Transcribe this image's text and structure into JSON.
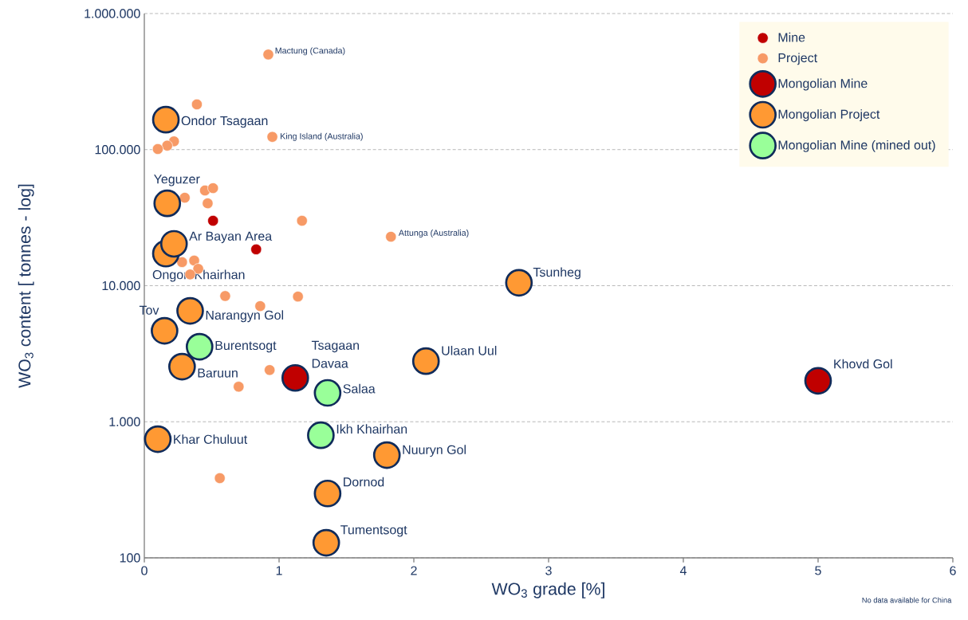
{
  "chart_data": {
    "type": "scatter",
    "xlabel": "WO$_{3}$ grade [%]",
    "ylabel": "WO$_{3}$ content [ tonnes - log]",
    "xlim": [
      0,
      6
    ],
    "xticks": [
      0,
      1,
      2,
      3,
      4,
      5,
      6
    ],
    "ylim": [
      100,
      1000000
    ],
    "yticks": [
      {
        "value": 100,
        "label": "100"
      },
      {
        "value": 1000,
        "label": "1.000"
      },
      {
        "value": 10000,
        "label": "10.000"
      },
      {
        "value": 100000,
        "label": "100.000"
      },
      {
        "value": 1000000,
        "label": "1.000.000"
      }
    ],
    "log": "y",
    "grid": "y",
    "legend": "top right",
    "series": [
      {
        "name": "Mine",
        "color": "#c00000",
        "x": [
          0.51,
          0.83
        ],
        "values": [
          30000,
          18500
        ]
      },
      {
        "name": "Project",
        "color": "#f79a66",
        "x": [
          0.92,
          0.39,
          0.95,
          0.22,
          0.17,
          0.1,
          0.3,
          0.45,
          0.51,
          0.47,
          1.17,
          1.83,
          0.28,
          0.37,
          0.4,
          0.34,
          0.6,
          0.86,
          1.14,
          0.93,
          0.7,
          0.56
        ],
        "values": [
          500000,
          215000,
          124000,
          115000,
          107000,
          101000,
          44300,
          50100,
          52100,
          40300,
          30000,
          22900,
          14900,
          15300,
          13300,
          12100,
          8400,
          7080,
          8320,
          2400,
          1810,
          385
        ]
      },
      {
        "name": "Mongolian Mine",
        "color": "#c00000",
        "x": [
          1.12,
          5.0
        ],
        "values": [
          2100,
          2000
        ]
      },
      {
        "name": "Mongolian Project",
        "color": "#ff9933",
        "x": [
          0.16,
          0.17,
          0.16,
          0.22,
          2.78,
          0.34,
          0.15,
          0.28,
          2.09,
          0.1,
          1.8,
          1.36,
          1.35
        ],
        "values": [
          166000,
          40300,
          17200,
          20300,
          10500,
          6530,
          4660,
          2540,
          2790,
          745,
          569,
          297,
          129
        ]
      },
      {
        "name": "Mongolian Mine (mined out)",
        "color": "#99ff99",
        "x": [
          0.41,
          1.36,
          1.31
        ],
        "values": [
          3560,
          1630,
          796
        ]
      }
    ],
    "annotations": [
      {
        "text": "Mactung (Canada)",
        "x": 0.92,
        "y": 500000
      },
      {
        "text": "King Island (Australia)",
        "x": 0.95,
        "y": 124000
      },
      {
        "text": "Attunga (Australia)",
        "x": 1.83,
        "y": 22900
      },
      {
        "text": "Ondor Tsagaan",
        "x": 0.16,
        "y": 166000
      },
      {
        "text": "Yeguzer",
        "x": 0.17,
        "y": 40300
      },
      {
        "text": "Ar Bayan Area",
        "x": 0.22,
        "y": 20300
      },
      {
        "text": "Ongon Khairhan",
        "x": 0.16,
        "y": 17200
      },
      {
        "text": "Tsunheg",
        "x": 2.78,
        "y": 10500
      },
      {
        "text": "Narangyn Gol",
        "x": 0.34,
        "y": 6530
      },
      {
        "text": "Tov",
        "x": 0.15,
        "y": 4660
      },
      {
        "text": "Burentsogt",
        "x": 0.41,
        "y": 3560
      },
      {
        "text": "Baruun",
        "x": 0.28,
        "y": 2540
      },
      {
        "text": "Tsagaan Davaa",
        "x": 1.12,
        "y": 2100
      },
      {
        "text": "Ulaan Uul",
        "x": 2.09,
        "y": 2790
      },
      {
        "text": "Salaa",
        "x": 1.36,
        "y": 1630
      },
      {
        "text": "Khovd Gol",
        "x": 5.0,
        "y": 2000
      },
      {
        "text": "Khar Chuluut",
        "x": 0.1,
        "y": 745
      },
      {
        "text": "Ikh Khairhan",
        "x": 1.31,
        "y": 796
      },
      {
        "text": "Nuuryn Gol",
        "x": 1.8,
        "y": 569
      },
      {
        "text": "Dornod",
        "x": 1.36,
        "y": 297
      },
      {
        "text": "Tumentsogt",
        "x": 1.35,
        "y": 129
      },
      "No data available for China"
    ]
  }
}
